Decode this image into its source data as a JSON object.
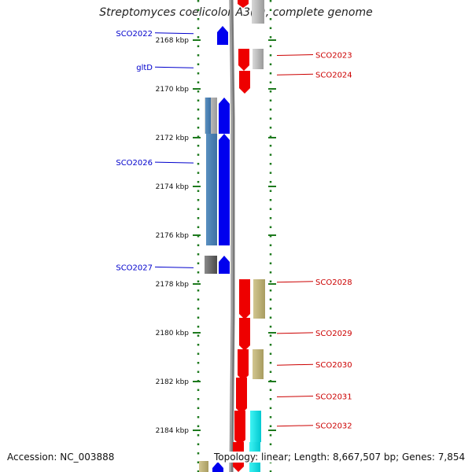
{
  "title": "Streptomyces coelicolor A3(2), complete genome",
  "footer": {
    "accession": "Accession: NC_003888",
    "topology": "Topology: linear; Length: 8,667,507 bp; Genes: 7,854"
  },
  "scale": {
    "start_kbp": 2167.3,
    "end_kbp": 2185.1,
    "ticks": [
      "2168 kbp",
      "2170 kbp",
      "2172 kbp",
      "2174 kbp",
      "2176 kbp",
      "2178 kbp",
      "2180 kbp",
      "2182 kbp",
      "2184 kbp"
    ]
  },
  "colors": {
    "forward_cds": "#0000ee",
    "reverse_cds": "#ee0000",
    "left_label": "#0000cc",
    "right_label": "#cc0000",
    "dotted_track": "#1e7a1e",
    "backbone": "#888888"
  },
  "left_labels": [
    {
      "name": "SCO2022",
      "kbp": 2167.8
    },
    {
      "name": "gltD",
      "kbp": 2169.2
    },
    {
      "name": "SCO2026",
      "kbp": 2173.1
    },
    {
      "name": "SCO2027",
      "kbp": 2177.4
    }
  ],
  "right_labels": [
    {
      "name": "SCO2023",
      "kbp": 2168.5
    },
    {
      "name": "SCO2024",
      "kbp": 2169.3
    },
    {
      "name": "SCO2028",
      "kbp": 2177.8
    },
    {
      "name": "SCO2029",
      "kbp": 2179.9
    },
    {
      "name": "SCO2030",
      "kbp": 2181.2
    },
    {
      "name": "SCO2031",
      "kbp": 2182.5
    },
    {
      "name": "SCO2032",
      "kbp": 2183.7
    }
  ]
}
